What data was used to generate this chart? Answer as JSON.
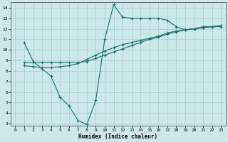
{
  "xlabel": "Humidex (Indice chaleur)",
  "bg_color": "#cce8e8",
  "grid_color": "#aacccc",
  "line_color": "#1a6e6e",
  "xlim": [
    -0.5,
    23.5
  ],
  "ylim": [
    2.8,
    14.5
  ],
  "xticks": [
    0,
    1,
    2,
    3,
    4,
    5,
    6,
    7,
    8,
    9,
    10,
    11,
    12,
    13,
    14,
    15,
    16,
    17,
    18,
    19,
    20,
    21,
    22,
    23
  ],
  "yticks": [
    3,
    4,
    5,
    6,
    7,
    8,
    9,
    10,
    11,
    12,
    13,
    14
  ],
  "line1_x": [
    1,
    2,
    3,
    4,
    5,
    6,
    7,
    8,
    9,
    10,
    11,
    12,
    13,
    14,
    15,
    16,
    17,
    18,
    19,
    20,
    21,
    22,
    23
  ],
  "line1_y": [
    10.7,
    8.9,
    8.2,
    7.5,
    5.5,
    4.7,
    3.3,
    2.9,
    5.2,
    11.0,
    14.3,
    13.1,
    13.0,
    13.0,
    13.0,
    13.0,
    12.8,
    12.2,
    11.9,
    12.0,
    12.2,
    12.2,
    12.2
  ],
  "line2_x": [
    1,
    2,
    3,
    4,
    5,
    6,
    7,
    8,
    9,
    10,
    11,
    12,
    13,
    14,
    15,
    16,
    17,
    18,
    19,
    20,
    21,
    22,
    23
  ],
  "line2_y": [
    8.8,
    8.8,
    8.8,
    8.8,
    8.8,
    8.8,
    8.8,
    8.9,
    9.2,
    9.5,
    9.8,
    10.1,
    10.4,
    10.7,
    11.0,
    11.2,
    11.5,
    11.7,
    11.9,
    12.0,
    12.1,
    12.2,
    12.3
  ],
  "line3_x": [
    1,
    2,
    3,
    4,
    5,
    6,
    7,
    8,
    9,
    10,
    11,
    12,
    13,
    14,
    15,
    16,
    17,
    18,
    19,
    20,
    21,
    22,
    23
  ],
  "line3_y": [
    8.5,
    8.4,
    8.3,
    8.3,
    8.4,
    8.5,
    8.7,
    9.1,
    9.5,
    9.9,
    10.2,
    10.5,
    10.7,
    10.9,
    11.1,
    11.3,
    11.6,
    11.8,
    11.9,
    12.0,
    12.1,
    12.2,
    12.3
  ]
}
